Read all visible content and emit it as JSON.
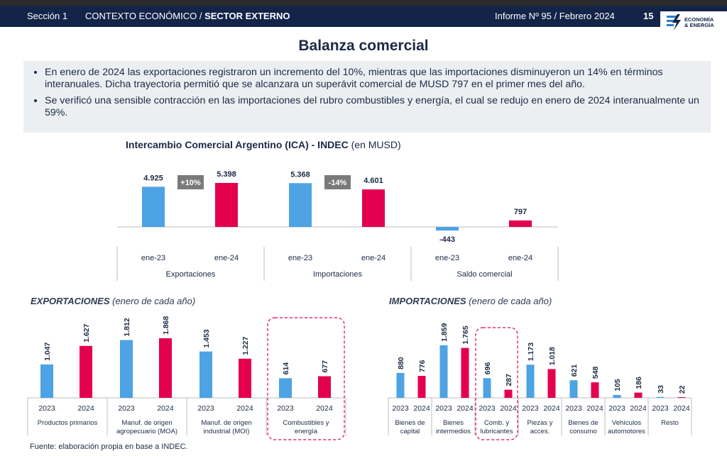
{
  "header": {
    "section": "Sección 1",
    "context": "CONTEXTO ECONÓMICO /",
    "context_bold": "SECTOR EXTERNO",
    "report": "Informe Nº 95 / Febrero 2024",
    "page": "15",
    "logo_line1": "ECONOMÍA",
    "logo_line2": "& ENERGÍA"
  },
  "title": "Balanza comercial",
  "summary": {
    "bullets": [
      "En enero de 2024 las exportaciones registraron un incremento del 10%, mientras que las importaciones disminuyeron un 14% en términos interanuales. Dicha trayectoria permitió que se alcanzara un superávit comercial de MUSD 797 en el primer mes del año.",
      "Se verificó una sensible contracción en las importaciones del rubro combustibles y energía, el cual se redujo en enero de 2024 interanualmente un 59%."
    ]
  },
  "ica_title": "Intercambio Comercial Argentino (ICA) - INDEC",
  "ica_unit": "(en MUSD)",
  "exports_title": "EXPORTACIONES",
  "exports_sub": "(enero de cada año)",
  "imports_title": "IMPORTACIONES",
  "imports_sub": "(enero de cada año)",
  "footer": "Fuente: elaboración propia en base a INDEC.",
  "colors": {
    "y2023": "#4da3e3",
    "y2024": "#e3004f",
    "badge": "#7a7a7a",
    "highlight": "#e3004f"
  },
  "chart_data": [
    {
      "type": "bar",
      "id": "ica",
      "groups": [
        {
          "name": "Exportaciones",
          "labels": [
            "ene-23",
            "ene-24"
          ],
          "values": [
            4925,
            5398
          ],
          "display": [
            "4.925",
            "5.398"
          ],
          "change": "+10%"
        },
        {
          "name": "Importaciones",
          "labels": [
            "ene-23",
            "ene-24"
          ],
          "values": [
            5368,
            4601
          ],
          "display": [
            "5.368",
            "4.601"
          ],
          "change": "-14%"
        },
        {
          "name": "Saldo comercial",
          "labels": [
            "ene-23",
            "ene-24"
          ],
          "values": [
            -443,
            797
          ],
          "display": [
            "-443",
            "797"
          ],
          "change": ""
        }
      ]
    },
    {
      "type": "bar",
      "id": "exportaciones",
      "years": [
        "2023",
        "2024"
      ],
      "categories": [
        {
          "name": [
            "Productos primarios"
          ],
          "values": [
            1047,
            1627
          ],
          "display": [
            "1.047",
            "1.627"
          ]
        },
        {
          "name": [
            "Manuf. de origen",
            "agropecuario (MOA)"
          ],
          "values": [
            1812,
            1868
          ],
          "display": [
            "1.812",
            "1.868"
          ]
        },
        {
          "name": [
            "Manuf. de origen",
            "industrial (MOI)"
          ],
          "values": [
            1453,
            1227
          ],
          "display": [
            "1.453",
            "1.227"
          ]
        },
        {
          "name": [
            "Combustibles y",
            "energía"
          ],
          "values": [
            614,
            677
          ],
          "display": [
            "614",
            "677"
          ],
          "highlight": true
        }
      ]
    },
    {
      "type": "bar",
      "id": "importaciones",
      "years": [
        "2023",
        "2024"
      ],
      "categories": [
        {
          "name": [
            "Bienes de",
            "capital"
          ],
          "values": [
            880,
            776
          ],
          "display": [
            "880",
            "776"
          ]
        },
        {
          "name": [
            "Bienes",
            "intermedios"
          ],
          "values": [
            1859,
            1765
          ],
          "display": [
            "1.859",
            "1.765"
          ]
        },
        {
          "name": [
            "Comb. y",
            "lubricantes"
          ],
          "values": [
            696,
            287
          ],
          "display": [
            "696",
            "287"
          ],
          "highlight": true
        },
        {
          "name": [
            "Piezas y",
            "acces."
          ],
          "values": [
            1173,
            1018
          ],
          "display": [
            "1.173",
            "1.018"
          ]
        },
        {
          "name": [
            "Bienes de",
            "consumo"
          ],
          "values": [
            621,
            548
          ],
          "display": [
            "621",
            "548"
          ]
        },
        {
          "name": [
            "Vehículos",
            "automotores"
          ],
          "values": [
            105,
            186
          ],
          "display": [
            "105",
            "186"
          ]
        },
        {
          "name": [
            "Resto"
          ],
          "values": [
            33,
            22
          ],
          "display": [
            "33",
            "22"
          ]
        }
      ]
    }
  ]
}
